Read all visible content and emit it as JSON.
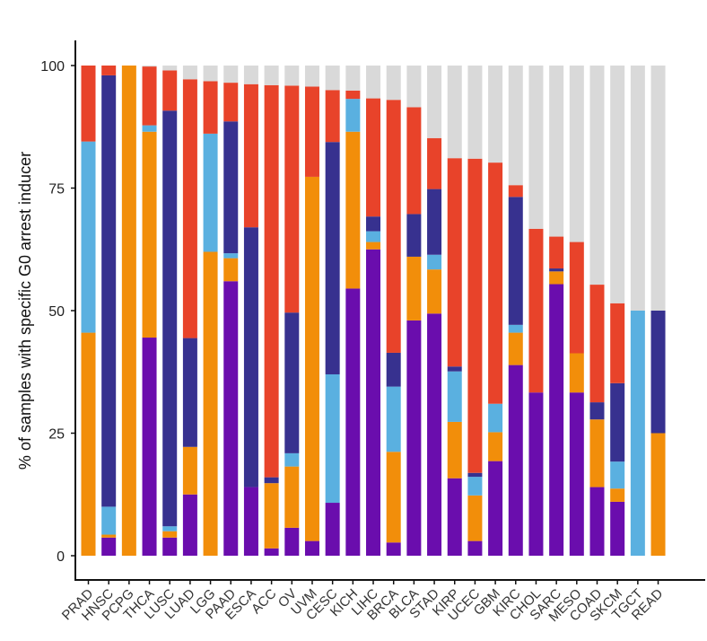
{
  "chart_data": {
    "type": "bar",
    "stacked": true,
    "title": "",
    "xlabel": "",
    "ylabel": "% of samples with specific G0 arrest inducer",
    "ylim": [
      0,
      100
    ],
    "yticks": [
      "0",
      "25",
      "50",
      "75",
      "100"
    ],
    "grid": false,
    "legend": "none",
    "categories": [
      "PRAD",
      "HNSC",
      "PCPG",
      "THCA",
      "LUSC",
      "LUAD",
      "LGG",
      "PAAD",
      "ESCA",
      "ACC",
      "OV",
      "UVM",
      "CESC",
      "KICH",
      "LIHC",
      "BRCA",
      "BLCA",
      "STAD",
      "KIRP",
      "UCEC",
      "GBM",
      "KIRC",
      "CHOL",
      "SARC",
      "MESO",
      "COAD",
      "SKCM",
      "TGCT",
      "READ"
    ],
    "series": [
      {
        "color": "#6a0dad",
        "values": [
          0,
          3.7,
          0,
          44.5,
          3.7,
          12.5,
          0,
          56,
          14,
          1.5,
          5.7,
          3,
          10.8,
          54.5,
          62.5,
          2.7,
          48,
          49.4,
          15.8,
          3,
          19.3,
          38.9,
          33.3,
          55.4,
          33.3,
          14,
          11,
          0,
          0
        ]
      },
      {
        "color": "#f28e0a",
        "values": [
          45.5,
          0.6,
          100,
          42,
          1.3,
          9.7,
          62,
          4.7,
          0,
          13.3,
          12.5,
          74.3,
          0,
          32,
          1.5,
          18.5,
          13,
          9,
          11.5,
          9.3,
          5.9,
          6.6,
          0,
          2.6,
          8,
          13.8,
          2.7,
          0,
          25
        ]
      },
      {
        "color": "#5ab0e0",
        "values": [
          39,
          5.7,
          0,
          1.3,
          1,
          0,
          24.1,
          1,
          0,
          0,
          2.7,
          0,
          26.2,
          6.7,
          2.2,
          13.3,
          0,
          3,
          10.3,
          3.8,
          5.8,
          1.6,
          0,
          0,
          0,
          0,
          5.5,
          50,
          0
        ]
      },
      {
        "color": "#37318f",
        "values": [
          0,
          88,
          0,
          0,
          84.8,
          22.2,
          0,
          26.9,
          53,
          1.2,
          28.7,
          0,
          47.4,
          0,
          3,
          6.9,
          8.7,
          13.4,
          1,
          0.8,
          0,
          26.1,
          0,
          0.6,
          0,
          3.5,
          16,
          0,
          25
        ]
      },
      {
        "color": "#e8432a",
        "values": [
          15.5,
          2,
          0,
          12,
          8.2,
          52.8,
          10.7,
          7.9,
          29.2,
          80,
          46.3,
          18.4,
          10.6,
          1.7,
          24.1,
          51.6,
          21.8,
          10.4,
          42.5,
          64.1,
          49.2,
          2.4,
          33.4,
          6.5,
          22.7,
          24,
          16.3,
          0,
          0
        ]
      },
      {
        "color": "#d9d9d9",
        "values": [
          0,
          0,
          0,
          0.2,
          1,
          2.8,
          3.2,
          3.5,
          3.8,
          4,
          4.1,
          4.3,
          5,
          5.1,
          6.7,
          7,
          8.5,
          14.8,
          18.9,
          19,
          19.8,
          24.4,
          33.3,
          34.9,
          36,
          44.7,
          48.5,
          50,
          50
        ]
      }
    ]
  }
}
